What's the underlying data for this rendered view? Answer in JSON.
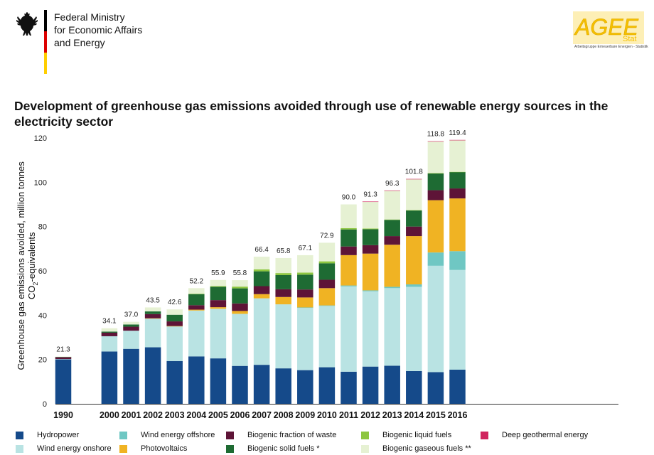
{
  "header": {
    "ministry_lines": [
      "Federal Ministry",
      "for Economic Affairs",
      "and Energy"
    ],
    "logo_text": "AGEE",
    "logo_stat": "Stat",
    "logo_sub": "Arbeitsgruppe Erneuerbare Energien - Statistik",
    "flag_colors": [
      "#000000",
      "#dd0000",
      "#ffce00"
    ]
  },
  "chart_data": {
    "type": "bar",
    "stacked": true,
    "title": "Development of greenhouse gas emissions avoided through use of renewable energy sources in the electricity sector",
    "ylabel_line1": "Greenhouse gas emissions avoided, million tonnes",
    "ylabel_line2_prefix": "CO",
    "ylabel_line2_sub": "2",
    "ylabel_line2_suffix": "-equivalents",
    "xlabel": "",
    "ylim": [
      0,
      120
    ],
    "yticks": [
      0,
      20,
      40,
      60,
      80,
      100,
      120
    ],
    "grid": false,
    "legend_position": "bottom",
    "categories": [
      "1990",
      "2000",
      "2001",
      "2002",
      "2003",
      "2004",
      "2005",
      "2006",
      "2007",
      "2008",
      "2009",
      "2010",
      "2011",
      "2012",
      "2013",
      "2014",
      "2015",
      "2016"
    ],
    "totals": [
      "21.3",
      "34.1",
      "37.0",
      "43.5",
      "42.6",
      "52.2",
      "55.9",
      "55.8",
      "66.4",
      "65.8",
      "67.1",
      "72.9",
      "90.0",
      "91.3",
      "96.3",
      "101.8",
      "118.8",
      "119.4"
    ],
    "series": [
      {
        "name": "Hydropower",
        "color": "#154a8a",
        "values": [
          20.1,
          23.6,
          24.8,
          25.5,
          19.3,
          21.4,
          20.5,
          17.1,
          17.6,
          16.0,
          15.2,
          16.5,
          14.5,
          16.8,
          17.2,
          14.8,
          14.3,
          15.4
        ]
      },
      {
        "name": "Wind energy onshore",
        "color": "#b9e3e3",
        "values": [
          0.1,
          6.9,
          8.2,
          13.0,
          15.7,
          20.7,
          22.4,
          23.5,
          30.0,
          28.9,
          28.2,
          27.8,
          38.5,
          34.0,
          35.0,
          38.0,
          48.0,
          45.0
        ]
      },
      {
        "name": "Wind energy offshore",
        "color": "#6fc7c3",
        "values": [
          0,
          0,
          0,
          0,
          0,
          0,
          0,
          0,
          0,
          0,
          0.1,
          0.1,
          0.4,
          0.4,
          0.6,
          1.1,
          6.0,
          8.5
        ]
      },
      {
        "name": "Photovoltaics",
        "color": "#f0b323",
        "values": [
          0,
          0,
          0,
          0.1,
          0.1,
          0.4,
          0.7,
          1.3,
          1.9,
          3.3,
          4.5,
          7.8,
          13.7,
          16.6,
          19.0,
          21.8,
          23.6,
          23.8
        ]
      },
      {
        "name": "Biogenic fraction of waste",
        "color": "#5e1437",
        "values": [
          0.9,
          1.6,
          1.8,
          1.9,
          2.1,
          2.0,
          3.2,
          3.4,
          3.6,
          3.5,
          3.6,
          3.8,
          3.9,
          3.8,
          3.9,
          4.3,
          4.5,
          4.5
        ]
      },
      {
        "name": "Biogenic solid fuels *",
        "color": "#1e6b33",
        "values": [
          0.1,
          0.5,
          1.0,
          1.2,
          3.0,
          5.0,
          6.0,
          6.8,
          6.7,
          6.4,
          6.7,
          7.4,
          7.7,
          7.2,
          7.3,
          7.3,
          7.6,
          7.4
        ]
      },
      {
        "name": "Biogenic liquid fuels",
        "color": "#8dc63f",
        "values": [
          0,
          0,
          0,
          0,
          0,
          0.2,
          0.3,
          0.8,
          0.9,
          0.9,
          0.9,
          0.9,
          0.6,
          0.3,
          0.2,
          0.1,
          0.1,
          0.1
        ]
      },
      {
        "name": "Biogenic gaseous fuels **",
        "color": "#e6f1d3",
        "values": [
          0.1,
          1.5,
          1.2,
          1.8,
          2.4,
          2.5,
          2.8,
          2.9,
          5.7,
          6.8,
          7.9,
          8.4,
          10.7,
          12.1,
          13.0,
          14.0,
          14.3,
          14.3
        ]
      },
      {
        "name": "Deep geothermal energy",
        "color": "#d0245e",
        "values": [
          0,
          0,
          0,
          0,
          0,
          0,
          0,
          0,
          0,
          0,
          0,
          0,
          0,
          0.1,
          0.1,
          0.1,
          0.1,
          0.1
        ]
      }
    ]
  },
  "legend": {
    "items": [
      {
        "label": "Hydropower",
        "color": "#154a8a"
      },
      {
        "label": "Wind energy offshore",
        "color": "#6fc7c3"
      },
      {
        "label": "Biogenic fraction of waste",
        "color": "#5e1437"
      },
      {
        "label": "Biogenic liquid fuels",
        "color": "#8dc63f"
      },
      {
        "label": "Deep geothermal energy",
        "color": "#d0245e"
      },
      {
        "label": "Wind energy onshore",
        "color": "#b9e3e3"
      },
      {
        "label": "Photovoltaics",
        "color": "#f0b323"
      },
      {
        "label": "Biogenic solid fuels *",
        "color": "#1e6b33"
      },
      {
        "label": "Biogenic gaseous fuels **",
        "color": "#e6f1d3"
      }
    ]
  }
}
